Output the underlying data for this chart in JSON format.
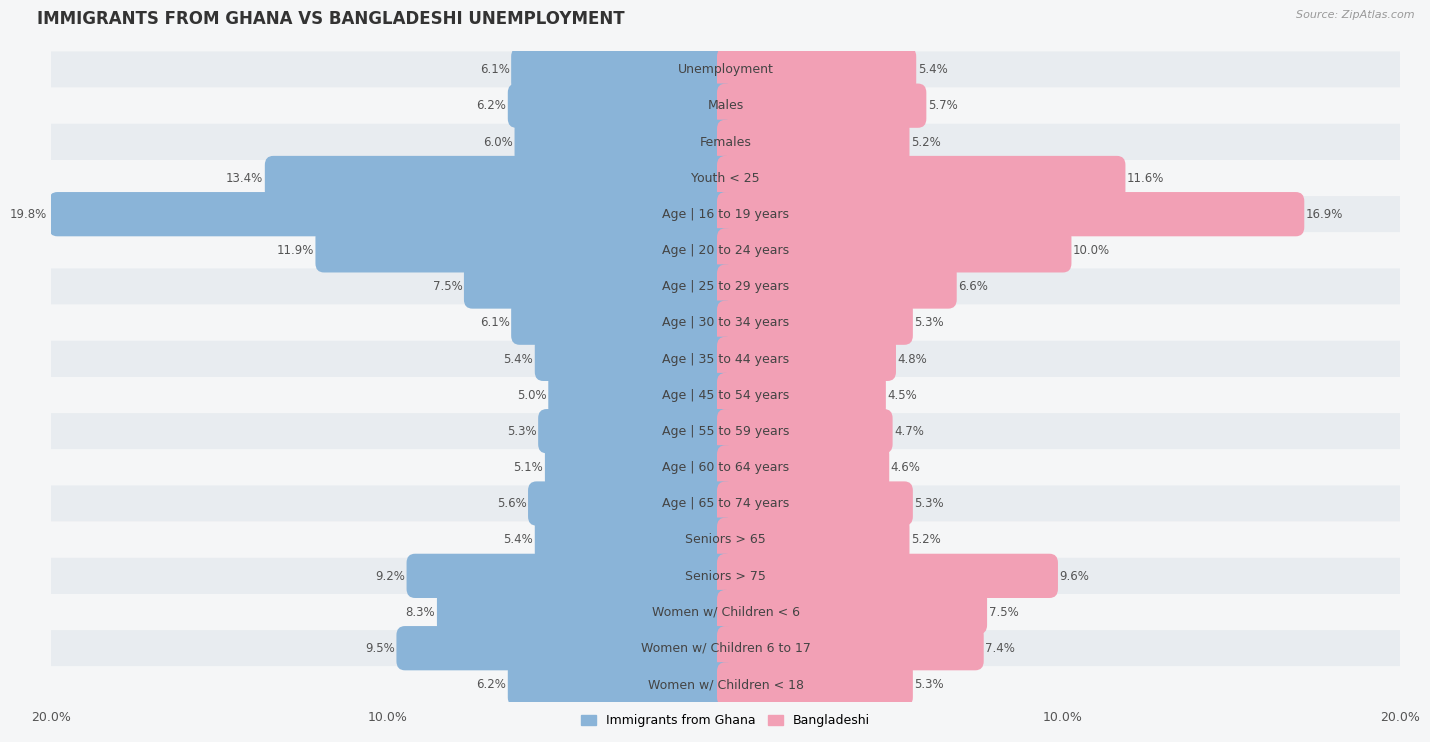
{
  "title": "IMMIGRANTS FROM GHANA VS BANGLADESHI UNEMPLOYMENT",
  "source": "Source: ZipAtlas.com",
  "categories": [
    "Unemployment",
    "Males",
    "Females",
    "Youth < 25",
    "Age | 16 to 19 years",
    "Age | 20 to 24 years",
    "Age | 25 to 29 years",
    "Age | 30 to 34 years",
    "Age | 35 to 44 years",
    "Age | 45 to 54 years",
    "Age | 55 to 59 years",
    "Age | 60 to 64 years",
    "Age | 65 to 74 years",
    "Seniors > 65",
    "Seniors > 75",
    "Women w/ Children < 6",
    "Women w/ Children 6 to 17",
    "Women w/ Children < 18"
  ],
  "ghana_values": [
    6.1,
    6.2,
    6.0,
    13.4,
    19.8,
    11.9,
    7.5,
    6.1,
    5.4,
    5.0,
    5.3,
    5.1,
    5.6,
    5.4,
    9.2,
    8.3,
    9.5,
    6.2
  ],
  "bangladeshi_values": [
    5.4,
    5.7,
    5.2,
    11.6,
    16.9,
    10.0,
    6.6,
    5.3,
    4.8,
    4.5,
    4.7,
    4.6,
    5.3,
    5.2,
    9.6,
    7.5,
    7.4,
    5.3
  ],
  "ghana_color": "#8ab4d8",
  "bangladeshi_color": "#f2a0b5",
  "bg_color_stripe": "#e8ecf0",
  "bg_color_plain": "#f5f6f7",
  "xlim": 20.0,
  "legend_ghana": "Immigrants from Ghana",
  "legend_bangladeshi": "Bangladeshi",
  "title_fontsize": 12,
  "label_fontsize": 9,
  "value_fontsize": 8.5
}
